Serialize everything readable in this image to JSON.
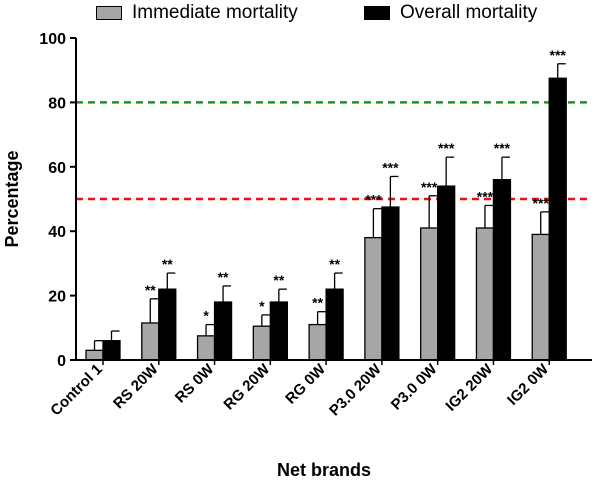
{
  "chart_data": {
    "type": "bar",
    "xlabel": "Net brands",
    "ylabel": "Percentage",
    "ylim": [
      0,
      100
    ],
    "yticks": [
      0,
      20,
      40,
      60,
      80,
      100
    ],
    "grid": false,
    "legend_position": "top",
    "categories": [
      "Control 1",
      "RS 20W",
      "RS 0W",
      "RG 20W",
      "RG 0W",
      "P3.0 20W",
      "P3.0 0W",
      "IG2 20W",
      "IG2 0W"
    ],
    "series": [
      {
        "name": "Immediate mortality",
        "color": "#a6a6a6",
        "values": [
          3,
          11.5,
          7.5,
          10.5,
          11,
          38,
          41,
          41,
          39
        ],
        "error": [
          3,
          7.5,
          3.5,
          3.5,
          4,
          9,
          10,
          7,
          7
        ],
        "significance": [
          "",
          "**",
          "*",
          "*",
          "**",
          "***",
          "***",
          "***",
          "***"
        ]
      },
      {
        "name": "Overall mortality",
        "color": "#000000",
        "values": [
          6,
          22,
          18,
          18,
          22,
          47.5,
          54,
          56,
          87.5
        ],
        "error": [
          3,
          5,
          5,
          4,
          5,
          9.5,
          9,
          7,
          4.5
        ],
        "significance": [
          "",
          "**",
          "**",
          "**",
          "**",
          "***",
          "***",
          "***",
          "***"
        ]
      }
    ],
    "reference_lines": [
      {
        "y": 80,
        "color": "#1a9a1a",
        "style": "dashed"
      },
      {
        "y": 50,
        "color": "#ee1111",
        "style": "dashed"
      }
    ]
  }
}
